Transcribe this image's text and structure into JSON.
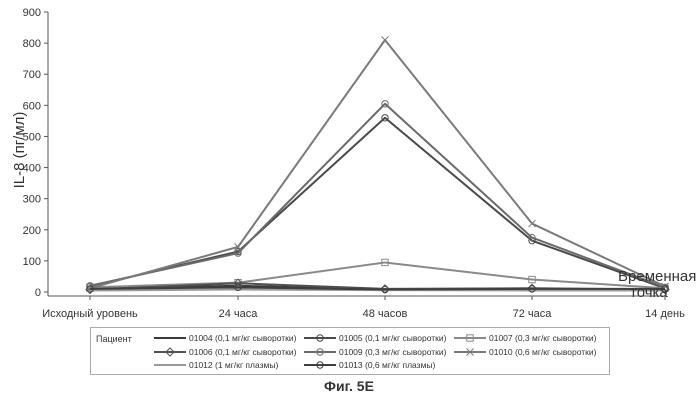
{
  "figure": {
    "caption": "Фиг. 5Е"
  },
  "legend": {
    "title": "Пациент"
  },
  "chart_data": {
    "type": "line",
    "ylabel": "IL-8 (пг/мл)",
    "xlabel": "Временная точка",
    "xlabel_lines": [
      "Временная",
      "точка"
    ],
    "categories": [
      "Исходный уровень",
      "24 часа",
      "48 часов",
      "72 часа",
      "14 день"
    ],
    "ylim": [
      0,
      900
    ],
    "yticks": [
      0,
      100,
      200,
      300,
      400,
      500,
      600,
      700,
      800,
      900
    ],
    "grid": false,
    "legend_position": "bottom",
    "series": [
      {
        "name": "01004 (0,1 мг/кг сыворотки)",
        "values": [
          10,
          20,
          8,
          8,
          10
        ],
        "color": "#3a3a3a",
        "marker": "none"
      },
      {
        "name": "01005 (0,1 мг/кг сыворотки)",
        "values": [
          18,
          130,
          560,
          165,
          12
        ],
        "color": "#4a4a4a",
        "marker": "circle"
      },
      {
        "name": "01007 (0,3 мг/кг сыворотки)",
        "values": [
          15,
          30,
          95,
          40,
          12
        ],
        "color": "#8a8a8a",
        "marker": "square"
      },
      {
        "name": "01006 (0,1 мг/кг сыворотки)",
        "values": [
          8,
          28,
          10,
          12,
          8
        ],
        "color": "#505050",
        "marker": "diamond"
      },
      {
        "name": "01009 (0,3 мг/кг сыворотки)",
        "values": [
          20,
          125,
          605,
          175,
          15
        ],
        "color": "#6a6a6a",
        "marker": "circle"
      },
      {
        "name": "01010 (0,6 мг/кг сыворотки)",
        "values": [
          12,
          145,
          810,
          220,
          18
        ],
        "color": "#7a7a7a",
        "marker": "x"
      },
      {
        "name": "01012 (1 мг/кг плазмы)",
        "values": [
          5,
          8,
          6,
          5,
          5
        ],
        "color": "#9a9a9a",
        "marker": "none"
      },
      {
        "name": "01013 (0,6 мг/кг плазмы)",
        "values": [
          10,
          15,
          8,
          10,
          10
        ],
        "color": "#3f3f3f",
        "marker": "circle"
      }
    ]
  }
}
